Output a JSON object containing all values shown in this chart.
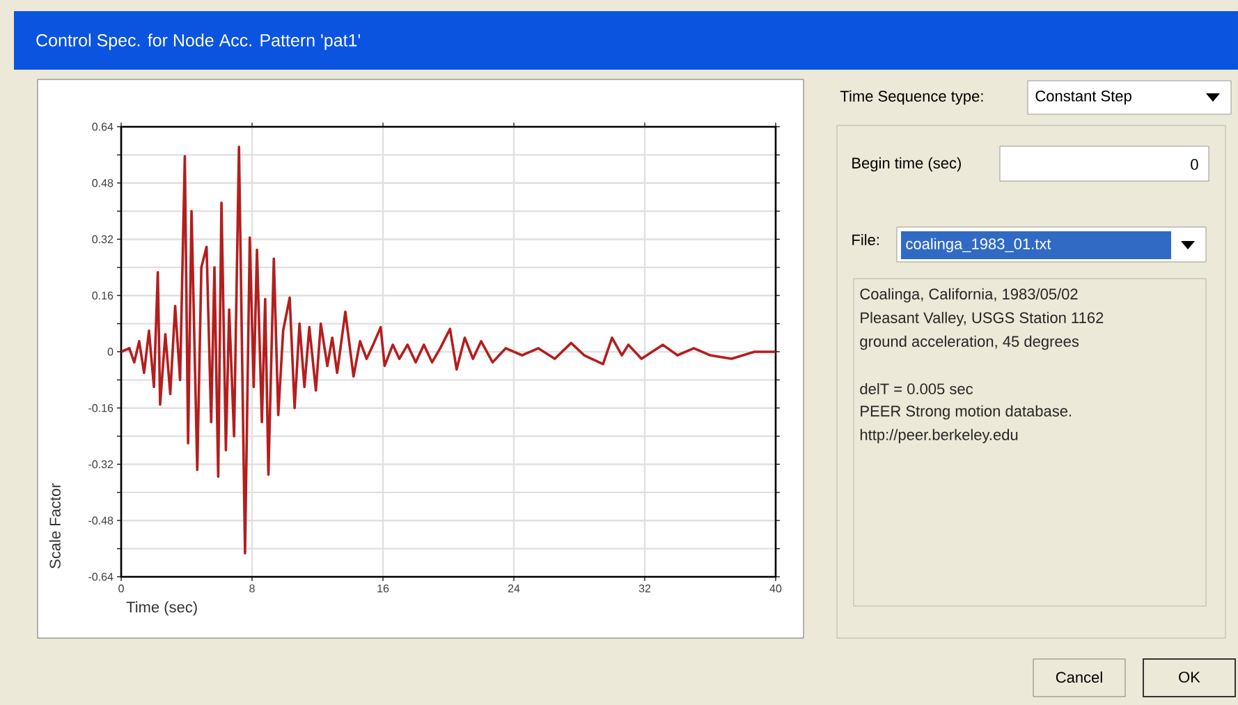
{
  "chart_data": [
    {
      "type": "line",
      "xlabel": "Time (sec)",
      "ylabel": "Scale Factor",
      "color": "#b41e1e",
      "grid": true,
      "x": [
        0,
        0.5,
        0.8,
        1.1,
        1.4,
        1.7,
        2.0,
        2.24,
        2.38,
        2.7,
        3.0,
        3.3,
        3.6,
        3.89,
        4.09,
        4.3,
        4.65,
        4.9,
        5.22,
        5.5,
        5.7,
        5.93,
        6.13,
        6.4,
        6.6,
        6.9,
        7.2,
        7.57,
        7.86,
        8.1,
        8.3,
        8.6,
        8.8,
        9.0,
        9.33,
        9.6,
        9.9,
        10.3,
        10.6,
        10.9,
        11.2,
        11.5,
        11.9,
        12.2,
        12.6,
        12.9,
        13.2,
        13.7,
        14.2,
        14.6,
        15.0,
        15.4,
        15.86,
        16.1,
        16.6,
        17.0,
        17.5,
        18.0,
        18.5,
        19.0,
        19.5,
        20.1,
        20.5,
        21.0,
        21.5,
        22.0,
        22.7,
        23.5,
        24.5,
        25.5,
        26.5,
        27.5,
        28.3,
        29.45,
        30.0,
        30.6,
        31.0,
        31.8,
        33.1,
        34.0,
        35.0,
        36.0,
        37.3,
        38.7,
        40
      ],
      "values": [
        0,
        0.01,
        -0.03,
        0.03,
        -0.06,
        0.06,
        -0.1,
        0.226,
        -0.15,
        0.05,
        -0.12,
        0.13,
        -0.08,
        0.556,
        -0.26,
        0.4,
        -0.336,
        0.24,
        0.298,
        -0.2,
        0.24,
        -0.355,
        0.424,
        -0.28,
        0.12,
        -0.24,
        0.583,
        -0.573,
        0.325,
        -0.1,
        0.29,
        -0.2,
        0.15,
        -0.349,
        0.265,
        -0.18,
        0.06,
        0.154,
        -0.16,
        0.08,
        -0.1,
        0.07,
        -0.11,
        0.08,
        -0.04,
        0.04,
        -0.06,
        0.114,
        -0.07,
        0.03,
        -0.02,
        0.02,
        0.07,
        -0.04,
        0.02,
        -0.02,
        0.02,
        -0.03,
        0.02,
        -0.03,
        0.01,
        0.065,
        -0.05,
        0.04,
        -0.02,
        0.03,
        -0.03,
        0.01,
        -0.01,
        0.01,
        -0.02,
        0.025,
        -0.01,
        -0.035,
        0.04,
        -0.01,
        0.02,
        -0.02,
        0.02,
        -0.01,
        0.01,
        -0.01,
        -0.02,
        0,
        0
      ],
      "xlim": [
        0,
        40
      ],
      "xticks": [
        0,
        8,
        16,
        24,
        32,
        40
      ],
      "ylim": [
        -0.64,
        0.64
      ],
      "yticks": [
        0.64,
        {
          "value": 0.56,
          "label": null
        },
        0.48,
        {
          "value": 0.4,
          "label": null
        },
        0.32,
        {
          "value": 0.24,
          "label": null
        },
        0.16,
        {
          "value": 0.08,
          "label": null
        },
        0,
        {
          "value": -0.08,
          "label": null
        },
        -0.16,
        {
          "value": -0.24,
          "label": null
        },
        -0.32,
        {
          "value": -0.4,
          "label": null
        },
        -0.48,
        {
          "value": -0.56,
          "label": null
        },
        -0.64
      ]
    },
    {
      "type": "other",
      "title": "Control Spec. for Node Acc. Pattern 'pat1'",
      "annotations": [
        "Time Sequence type:",
        "Constant Step",
        "Begin time (sec)",
        "0",
        "File:",
        "coalinga_1983_01.txt",
        "Coalinga, California, 1983/05/02",
        "Pleasant Valley, USGS Station 1162",
        "ground acceleration, 45 degrees",
        "delT = 0.005 sec",
        "PEER Strong motion database.",
        "http://peer.berkeley.edu",
        "Cancel",
        "OK"
      ]
    }
  ]
}
